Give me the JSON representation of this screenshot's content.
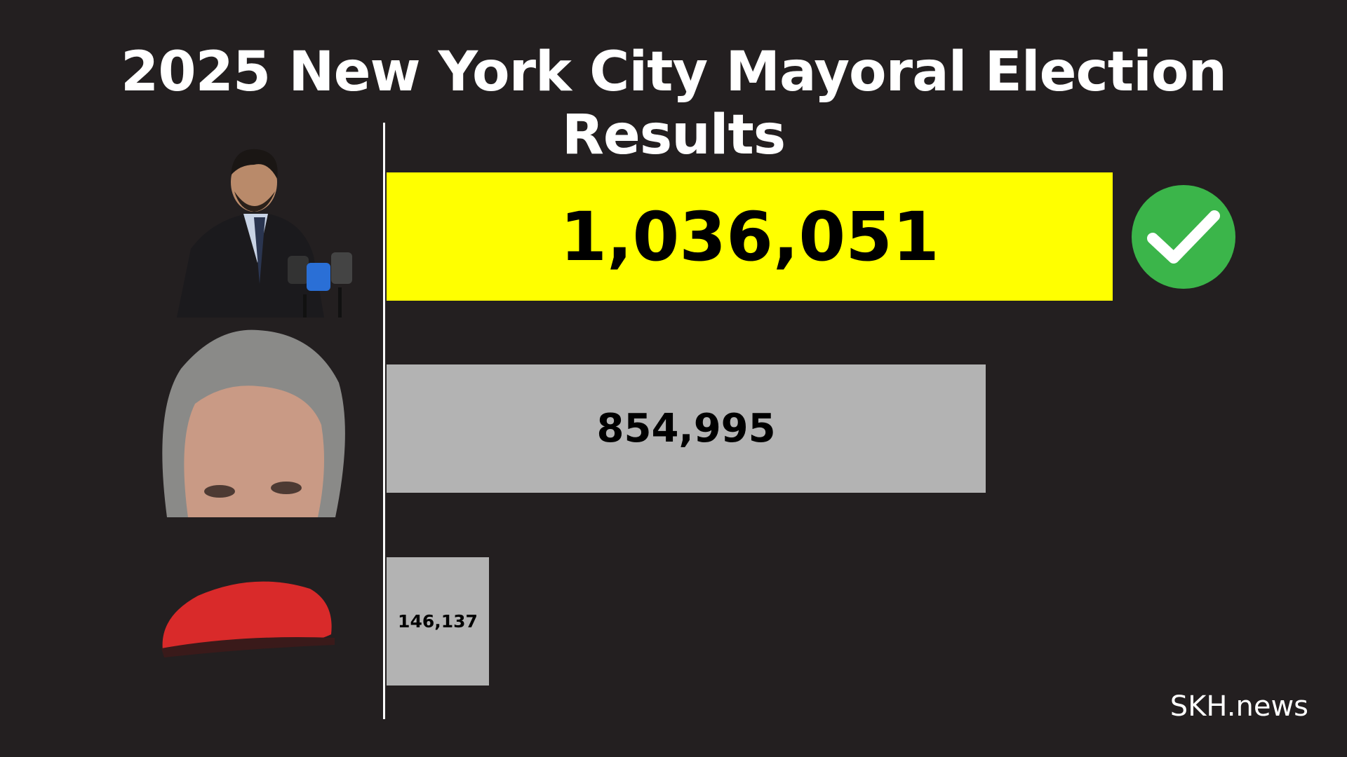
{
  "chart_data": {
    "type": "bar",
    "orientation": "horizontal",
    "title": "2025 New York City Mayoral Election Results",
    "categories": [
      "Candidate 1 (photo)",
      "Candidate 2 (photo)",
      "Candidate 3 (red beret)"
    ],
    "values": [
      1036051,
      854995,
      146137
    ],
    "labels": [
      "1,036,051",
      "854,995",
      "146,137"
    ],
    "colors": [
      "#ffff00",
      "#b3b3b3",
      "#b3b3b3"
    ],
    "winner_index": 0,
    "winner_icon": "check-circle-icon",
    "check_color": "#3bb54a",
    "xlim": [
      0,
      1036051
    ],
    "grid": false,
    "legend": "none"
  },
  "brand": "SKH.news",
  "background": "#231f20"
}
